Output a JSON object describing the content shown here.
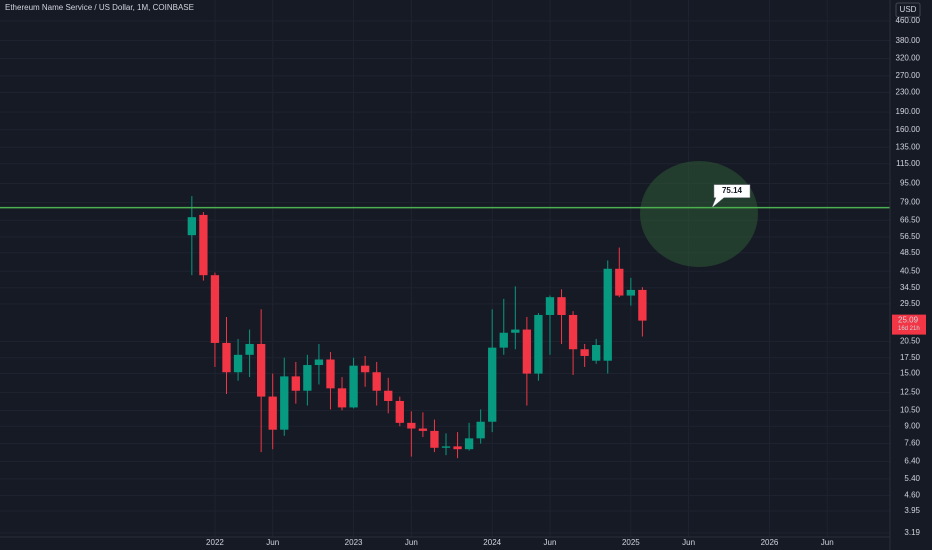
{
  "chart_data": {
    "type": "candlestick",
    "title": "Ethereum Name Service / US Dollar, 1M, COINBASE",
    "currency": "USD",
    "log_scale": true,
    "grid": true,
    "up_color": "#089981",
    "down_color": "#f23645",
    "x": [
      "2021-11",
      "2021-12",
      "2022-01",
      "2022-02",
      "2022-03",
      "2022-04",
      "2022-05",
      "2022-06",
      "2022-07",
      "2022-08",
      "2022-09",
      "2022-10",
      "2022-11",
      "2022-12",
      "2023-01",
      "2023-02",
      "2023-03",
      "2023-04",
      "2023-05",
      "2023-06",
      "2023-07",
      "2023-08",
      "2023-09",
      "2023-10",
      "2023-11",
      "2023-12",
      "2024-01",
      "2024-02",
      "2024-03",
      "2024-04",
      "2024-05",
      "2024-06",
      "2024-07",
      "2024-08",
      "2024-09",
      "2024-10",
      "2024-11",
      "2024-12",
      "2025-01",
      "2025-02"
    ],
    "open": [
      57.5,
      70,
      39,
      20.2,
      15.2,
      18,
      20,
      12,
      8.7,
      14.6,
      12.7,
      16.3,
      17.2,
      13,
      10.8,
      16.2,
      15.2,
      12.7,
      11.5,
      9.3,
      8.8,
      8.6,
      7.3,
      7.4,
      7.2,
      8,
      9.4,
      19.3,
      22.3,
      23,
      15,
      26.5,
      31.5,
      26.5,
      19,
      17,
      17,
      41.5,
      32,
      33.8
    ],
    "high": [
      84,
      72,
      40,
      26,
      21,
      23,
      28,
      15,
      17.5,
      16.8,
      18,
      20,
      18.5,
      14.5,
      17.5,
      17.8,
      16.8,
      14.4,
      12,
      10.4,
      10.3,
      9.6,
      8.4,
      8.5,
      9.3,
      10.6,
      28,
      31,
      35,
      26,
      27,
      32,
      34,
      27.5,
      20,
      21,
      45,
      51,
      38,
      34.7
    ],
    "low": [
      39,
      37,
      16,
      12.3,
      14,
      14.5,
      7,
      7.2,
      8.2,
      11.2,
      11,
      13.5,
      10.6,
      10.5,
      10.7,
      13.2,
      11,
      10.2,
      9,
      6.7,
      8.1,
      7,
      6.8,
      6.6,
      7.1,
      7.6,
      8.5,
      18,
      19,
      11,
      14,
      18,
      20,
      14.8,
      16,
      16.5,
      15,
      31.5,
      29,
      21.5
    ],
    "close": [
      68.5,
      39,
      20.2,
      15.2,
      18,
      20,
      12,
      8.7,
      14.6,
      12.7,
      16.3,
      17.2,
      13,
      10.8,
      16.2,
      15.2,
      12.7,
      11.5,
      9.3,
      8.8,
      8.6,
      7.3,
      7.4,
      7.2,
      8,
      9.4,
      19.3,
      22.3,
      23,
      15,
      26.5,
      31.5,
      26.5,
      19,
      17.8,
      19.8,
      41.5,
      32,
      33.8,
      25.09
    ],
    "hline": 75.14,
    "hline_color": "#4caf50",
    "countdown": "16d 21h",
    "ylim": [
      3.07,
      564
    ],
    "yticks": [
      {
        "value": 460,
        "label": "460.00"
      },
      {
        "value": 380,
        "label": "380.00"
      },
      {
        "value": 320,
        "label": "320.00"
      },
      {
        "value": 270,
        "label": "270.00"
      },
      {
        "value": 230,
        "label": "230.00"
      },
      {
        "value": 190,
        "label": "190.00"
      },
      {
        "value": 160,
        "label": "160.00"
      },
      {
        "value": 135,
        "label": "135.00"
      },
      {
        "value": 115,
        "label": "115.00"
      },
      {
        "value": 95,
        "label": "95.00"
      },
      {
        "value": 79,
        "label": "79.00"
      },
      {
        "value": 66.5,
        "label": "66.50"
      },
      {
        "value": 56.5,
        "label": "56.50"
      },
      {
        "value": 48.5,
        "label": "48.50"
      },
      {
        "value": 40.5,
        "label": "40.50"
      },
      {
        "value": 34.5,
        "label": "34.50"
      },
      {
        "value": 29.5,
        "label": "29.50"
      },
      {
        "value": 20.5,
        "label": "20.50"
      },
      {
        "value": 17.5,
        "label": "17.50"
      },
      {
        "value": 15,
        "label": "15.00"
      },
      {
        "value": 12.5,
        "label": "12.50"
      },
      {
        "value": 10.5,
        "label": "10.50"
      },
      {
        "value": 9,
        "label": "9.00"
      },
      {
        "value": 7.6,
        "label": "7.60"
      },
      {
        "value": 6.4,
        "label": "6.40"
      },
      {
        "value": 5.4,
        "label": "5.40"
      },
      {
        "value": 4.6,
        "label": "4.60"
      },
      {
        "value": 3.95,
        "label": "3.95"
      },
      {
        "value": 3.19,
        "label": "3.19"
      }
    ],
    "xlim": [
      "2020-07",
      "2026-11"
    ],
    "xticks": [
      {
        "value": "2022-01",
        "label": "2022"
      },
      {
        "value": "2022-06",
        "label": "Jun"
      },
      {
        "value": "2023-01",
        "label": "2023"
      },
      {
        "value": "2023-06",
        "label": "Jun"
      },
      {
        "value": "2024-01",
        "label": "2024"
      },
      {
        "value": "2024-06",
        "label": "Jun"
      },
      {
        "value": "2025-01",
        "label": "2025"
      },
      {
        "value": "2025-06",
        "label": "Jun"
      },
      {
        "value": "2026-01",
        "label": "2026"
      },
      {
        "value": "2026-06",
        "label": "Jun"
      }
    ]
  }
}
